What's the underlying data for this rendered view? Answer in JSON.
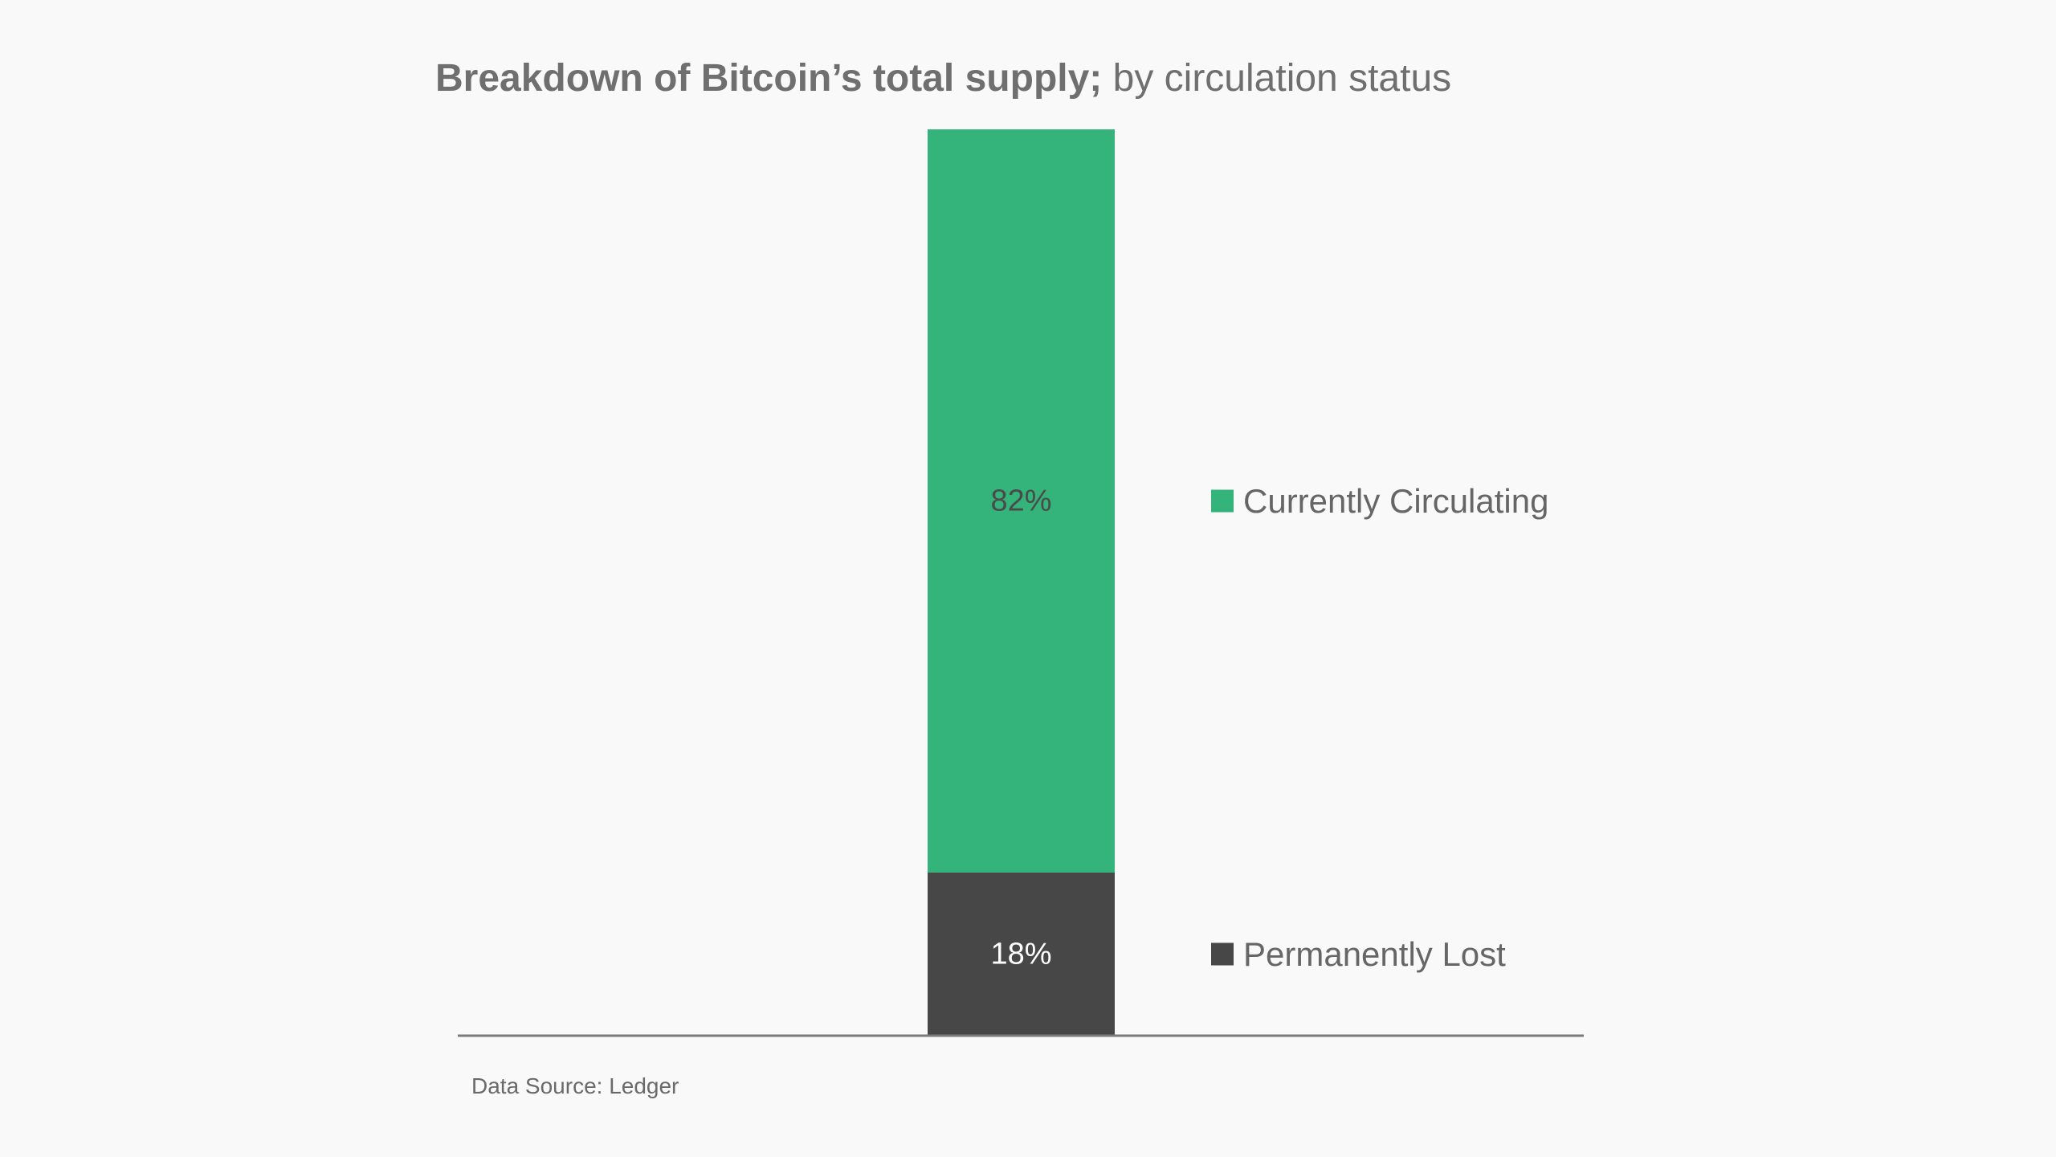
{
  "chart_data": {
    "type": "bar",
    "stacked": true,
    "title": "Breakdown of Bitcoin’s total supply;",
    "subtitle": "by circulation status",
    "categories": [
      ""
    ],
    "series": [
      {
        "name": "Permanently Lost",
        "values": [
          18
        ],
        "label": "18%",
        "color": "#474747",
        "label_color": "#ffffff"
      },
      {
        "name": "Currently Circulating",
        "values": [
          82
        ],
        "label": "82%",
        "color": "#34b47a",
        "label_color": "#4a4a4a"
      }
    ],
    "ylim": [
      0,
      100
    ],
    "grid": false,
    "legend": "right",
    "xlabel": "",
    "ylabel": ""
  },
  "source": "Data Source: Ledger"
}
